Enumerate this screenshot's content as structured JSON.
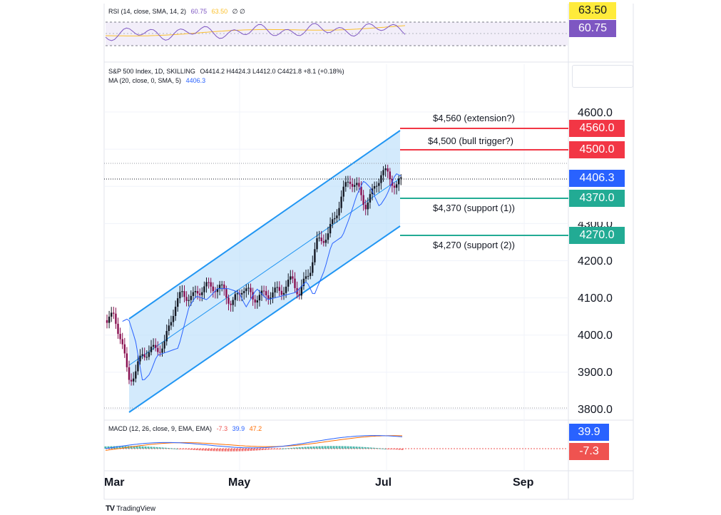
{
  "rsi": {
    "legend": "RSI (14, close, SMA, 14, 2)",
    "value_rsi": "60.75",
    "value_sma": "63.50",
    "extra": "∅ ∅",
    "badge_sma": "63.50",
    "badge_rsi": "60.75",
    "colors": {
      "rsi": "#7e57c2",
      "sma": "#fbc02d"
    }
  },
  "main": {
    "legend": "S&P 500 Index, 1D, SKILLING",
    "ohlc": "O4414.2  H4424.3  L4412.0  C4421.8  +8.1 (+0.18%)",
    "ma_legend": "MA (20, close, 0, SMA, 5)",
    "ma_value": "4406.3",
    "price_badge": "4406.3",
    "y_ticks": [
      "4600.0",
      "4500.0",
      "4300.0",
      "4200.0",
      "4100.0",
      "4000.0",
      "3900.0",
      "3800.0"
    ],
    "levels": [
      {
        "text": "$4,560 (extension?)",
        "badge": "4560.0",
        "color": "#f23645"
      },
      {
        "text": "$4,500 (bull trigger?)",
        "badge": "4500.0",
        "color": "#f23645"
      },
      {
        "text": "$4,370 (support (1))",
        "badge": "4370.0",
        "color": "#22ab94"
      },
      {
        "text": "$4,270 (support (2))",
        "badge": "4270.0",
        "color": "#22ab94"
      }
    ],
    "colors": {
      "price_badge": "#2962ff",
      "channel": "#2196f3",
      "channel_fill": "#bbdefb",
      "up": "#131722",
      "down": "#880e4f"
    }
  },
  "macd": {
    "legend": "MACD (12, 26, close, 9, EMA, EMA)",
    "v1": "-7.3",
    "v2": "39.9",
    "v3": "47.2",
    "badge_macd": "39.9",
    "badge_hist": "-7.3",
    "colors": {
      "macd": "#2962ff",
      "signal": "#ff6d00",
      "hist_pos": "#26a69a",
      "hist_neg": "#ef5350"
    }
  },
  "time_axis": {
    "labels": [
      "Mar",
      "May",
      "Jul",
      "Sep"
    ]
  },
  "brand": {
    "name": "TradingView",
    "logo": "TV"
  }
}
